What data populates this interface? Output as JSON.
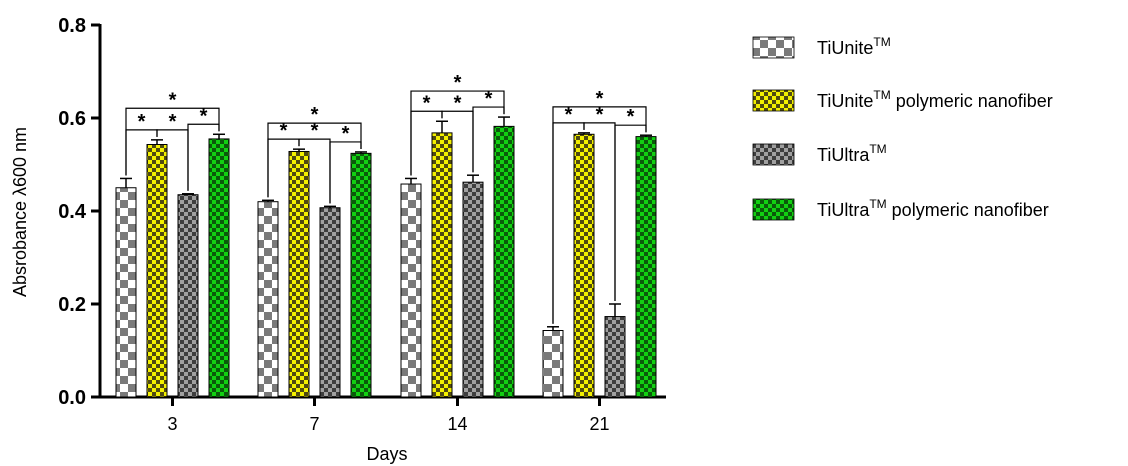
{
  "colors": {
    "tiunite_light": "#ffffff",
    "tiunite_dark": "#7a7a7a",
    "tiunite_poly_light": "#f3f000",
    "tiunite_poly_dark": "#4f4a12",
    "tiultra_light": "#a0a0a0",
    "tiultra_dark": "#3e3e3e",
    "tiultra_poly_light": "#12d012",
    "tiultra_poly_dark": "#0b5a0b"
  },
  "chart_data": {
    "type": "bar",
    "title": "",
    "xlabel": "Days",
    "ylabel": "Absrobance λ600 nm",
    "ylim": [
      0,
      0.8
    ],
    "yticks": [
      0.0,
      0.2,
      0.4,
      0.6,
      0.8
    ],
    "ytick_labels": [
      "0.0",
      "0.2",
      "0.4",
      "0.6",
      "0.8"
    ],
    "categories": [
      "3",
      "7",
      "14",
      "21"
    ],
    "legend_position": "right",
    "significance_marker": "*",
    "series": [
      {
        "name_main": "TiUnite",
        "name_sup": "TM",
        "name_suffix": "",
        "pattern": "tiunite",
        "values": [
          0.45,
          0.42,
          0.458,
          0.143
        ],
        "errors": [
          0.02,
          0.003,
          0.012,
          0.008
        ]
      },
      {
        "name_main": "TiUnite",
        "name_sup": "TM",
        "name_suffix": " polymeric nanofiber",
        "pattern": "tiunite_poly",
        "values": [
          0.543,
          0.528,
          0.568,
          0.565
        ],
        "errors": [
          0.01,
          0.005,
          0.025,
          0.003
        ]
      },
      {
        "name_main": "TiUltra",
        "name_sup": "TM",
        "name_suffix": "",
        "pattern": "tiultra",
        "values": [
          0.435,
          0.407,
          0.462,
          0.173
        ],
        "errors": [
          0.002,
          0.003,
          0.015,
          0.027
        ]
      },
      {
        "name_main": "TiUltra",
        "name_sup": "TM",
        "name_suffix": " polymeric nanofiber",
        "pattern": "tiultra_poly",
        "values": [
          0.555,
          0.524,
          0.582,
          0.56
        ],
        "errors": [
          0.01,
          0.003,
          0.02,
          0.003
        ]
      }
    ],
    "significance": [
      {
        "category": 0,
        "pairs": [
          [
            0,
            1
          ],
          [
            1,
            2
          ],
          [
            2,
            3
          ],
          [
            0,
            3
          ]
        ]
      },
      {
        "category": 1,
        "pairs": [
          [
            0,
            1
          ],
          [
            1,
            2
          ],
          [
            2,
            3
          ],
          [
            0,
            3
          ]
        ]
      },
      {
        "category": 2,
        "pairs": [
          [
            0,
            1
          ],
          [
            1,
            2
          ],
          [
            2,
            3
          ],
          [
            0,
            3
          ]
        ]
      },
      {
        "category": 3,
        "pairs": [
          [
            0,
            1
          ],
          [
            1,
            2
          ],
          [
            2,
            3
          ],
          [
            0,
            3
          ]
        ]
      }
    ]
  }
}
